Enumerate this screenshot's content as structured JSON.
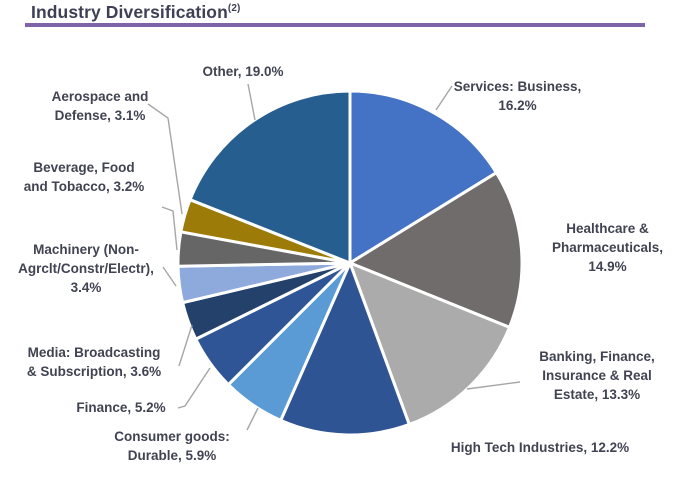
{
  "page": {
    "title": "Industry Diversification",
    "title_superscript": "(2)",
    "accent_underline_color": "#7E63A8",
    "background_color": "#FFFFFF",
    "label_text_color": "#404452",
    "leader_line_color": "#A6A6A6"
  },
  "chart_data": {
    "type": "pie",
    "title": "Industry Diversification (2)",
    "units": "percent",
    "total": 100.0,
    "start_angle_deg": 0,
    "direction": "clockwise",
    "legend_position": "none (direct data labels with gray leader lines)",
    "slice_border_color": "#FFFFFF",
    "slices": [
      {
        "name": "Services: Business",
        "value": 16.2,
        "color": "#4472C4",
        "display": "Services: Business,\n16.2%"
      },
      {
        "name": "Healthcare & Pharmaceuticals",
        "value": 14.9,
        "color": "#716C6C",
        "display": "Healthcare &\nPharmaceuticals,\n14.9%"
      },
      {
        "name": "Banking, Finance, Insurance & Real Estate",
        "value": 13.3,
        "color": "#ABABAB",
        "display": "Banking, Finance,\nInsurance & Real\nEstate, 13.3%"
      },
      {
        "name": "High Tech Industries",
        "value": 12.2,
        "color": "#2E5494",
        "display": "High Tech Industries, 12.2%"
      },
      {
        "name": "Consumer goods: Durable",
        "value": 5.9,
        "color": "#5B9BD5",
        "display": "Consumer goods:\nDurable, 5.9%"
      },
      {
        "name": "Finance",
        "value": 5.2,
        "color": "#2F5597",
        "display": "Finance, 5.2%"
      },
      {
        "name": "Media: Broadcasting & Subscription",
        "value": 3.6,
        "color": "#24416B",
        "display": "Media: Broadcasting\n& Subscription, 3.6%"
      },
      {
        "name": "Machinery (Non-Agrclt/Constr/Electr)",
        "value": 3.4,
        "color": "#8EA9DB",
        "display": "Machinery (Non-\nAgrclt/Constr/Electr),\n3.4%"
      },
      {
        "name": "Beverage, Food and Tobacco",
        "value": 3.2,
        "color": "#666666",
        "display": "Beverage, Food\nand Tobacco, 3.2%"
      },
      {
        "name": "Aerospace and Defense",
        "value": 3.1,
        "color": "#9C7B08",
        "display": "Aerospace and\nDefense, 3.1%"
      },
      {
        "name": "Other",
        "value": 19.0,
        "color": "#265E90",
        "display": "Other, 19.0%"
      }
    ]
  }
}
